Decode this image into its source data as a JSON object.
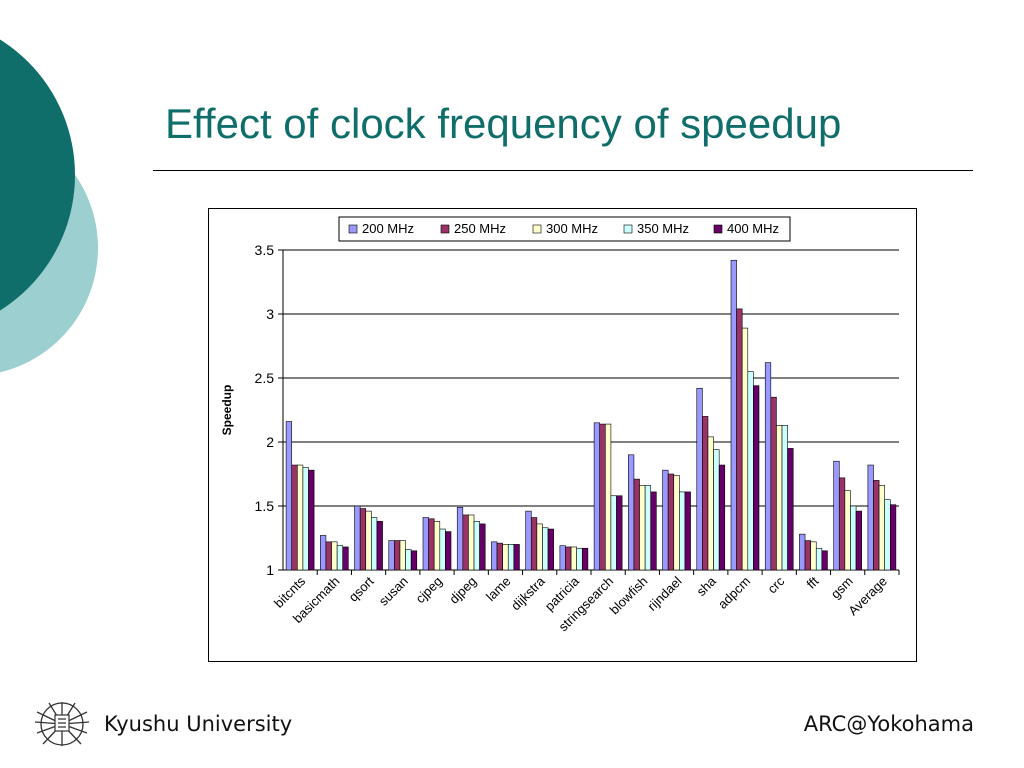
{
  "slide": {
    "title": "Effect of clock frequency of speedup",
    "footer_left": "Kyushu University",
    "footer_right": "ARC@Yokohama",
    "colors": {
      "title": "#0f6e6a",
      "circle_dark": "#0f6e6a",
      "circle_light": "#9ccfcf"
    }
  },
  "chart_data": {
    "type": "bar",
    "title": "",
    "xlabel": "",
    "ylabel": "Speedup",
    "ylim": [
      1,
      3.5
    ],
    "yticks": [
      "1",
      "1.5",
      "2",
      "2.5",
      "3",
      "3.5"
    ],
    "grid": true,
    "legend_position": "top",
    "categories": [
      "bitcnts",
      "basicmath",
      "qsort",
      "susan",
      "cjpeg",
      "djpeg",
      "lame",
      "dijkstra",
      "patricia",
      "stringsearch",
      "blowfish",
      "rijndael",
      "sha",
      "adpcm",
      "crc",
      "fft",
      "gsm",
      "Average"
    ],
    "series": [
      {
        "name": "200 MHz",
        "color": "#9999ff",
        "values": [
          2.16,
          1.27,
          1.5,
          1.23,
          1.41,
          1.49,
          1.22,
          1.46,
          1.19,
          2.15,
          1.9,
          1.78,
          2.42,
          3.42,
          2.62,
          1.28,
          1.85,
          1.82
        ]
      },
      {
        "name": "250 MHz",
        "color": "#993366",
        "values": [
          1.82,
          1.22,
          1.48,
          1.23,
          1.4,
          1.43,
          1.21,
          1.41,
          1.18,
          2.14,
          1.71,
          1.75,
          2.2,
          3.04,
          2.35,
          1.23,
          1.72,
          1.7
        ]
      },
      {
        "name": "300 MHz",
        "color": "#ffffcc",
        "values": [
          1.82,
          1.22,
          1.46,
          1.23,
          1.38,
          1.43,
          1.2,
          1.36,
          1.18,
          2.14,
          1.66,
          1.74,
          2.04,
          2.89,
          2.13,
          1.22,
          1.62,
          1.66
        ]
      },
      {
        "name": "350 MHz",
        "color": "#ccffff",
        "values": [
          1.8,
          1.19,
          1.41,
          1.16,
          1.32,
          1.38,
          1.2,
          1.33,
          1.17,
          1.58,
          1.66,
          1.61,
          1.94,
          2.55,
          2.13,
          1.17,
          1.5,
          1.55
        ]
      },
      {
        "name": "400 MHz",
        "color": "#660066",
        "values": [
          1.78,
          1.18,
          1.38,
          1.15,
          1.3,
          1.36,
          1.2,
          1.32,
          1.17,
          1.58,
          1.61,
          1.61,
          1.82,
          2.44,
          1.95,
          1.15,
          1.46,
          1.51
        ]
      }
    ]
  }
}
